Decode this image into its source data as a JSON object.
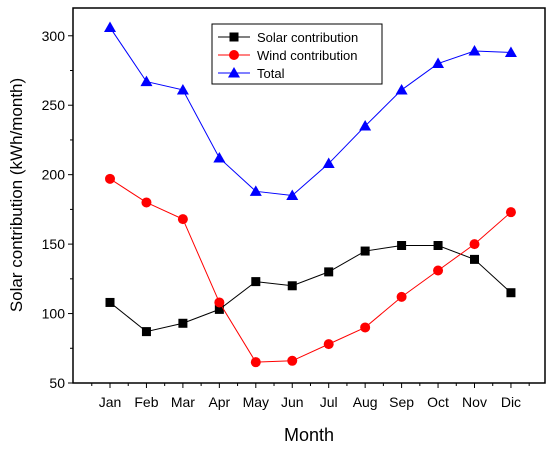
{
  "chart_data": {
    "type": "line",
    "xlabel": "Month",
    "ylabel": "Solar contribution (kWh/month)",
    "categories": [
      "Jan",
      "Feb",
      "Mar",
      "Apr",
      "May",
      "Jun",
      "Jul",
      "Aug",
      "Sep",
      "Oct",
      "Nov",
      "Dic"
    ],
    "ylim": [
      50,
      320
    ],
    "yticks": [
      50,
      100,
      150,
      200,
      250,
      300
    ],
    "grid": false,
    "legend_position": "top-center",
    "series": [
      {
        "name": "Solar contribution",
        "color": "#000000",
        "marker": "square",
        "values": [
          108,
          87,
          93,
          103,
          123,
          120,
          130,
          145,
          149,
          149,
          139,
          115
        ]
      },
      {
        "name": "Wind contribution",
        "color": "#ff0000",
        "marker": "circle",
        "values": [
          197,
          180,
          168,
          108,
          65,
          66,
          78,
          90,
          112,
          131,
          150,
          173
        ]
      },
      {
        "name": "Total",
        "color": "#0000ff",
        "marker": "triangle",
        "values": [
          306,
          267,
          261,
          212,
          188,
          185,
          208,
          235,
          261,
          280,
          289,
          288
        ]
      }
    ]
  }
}
